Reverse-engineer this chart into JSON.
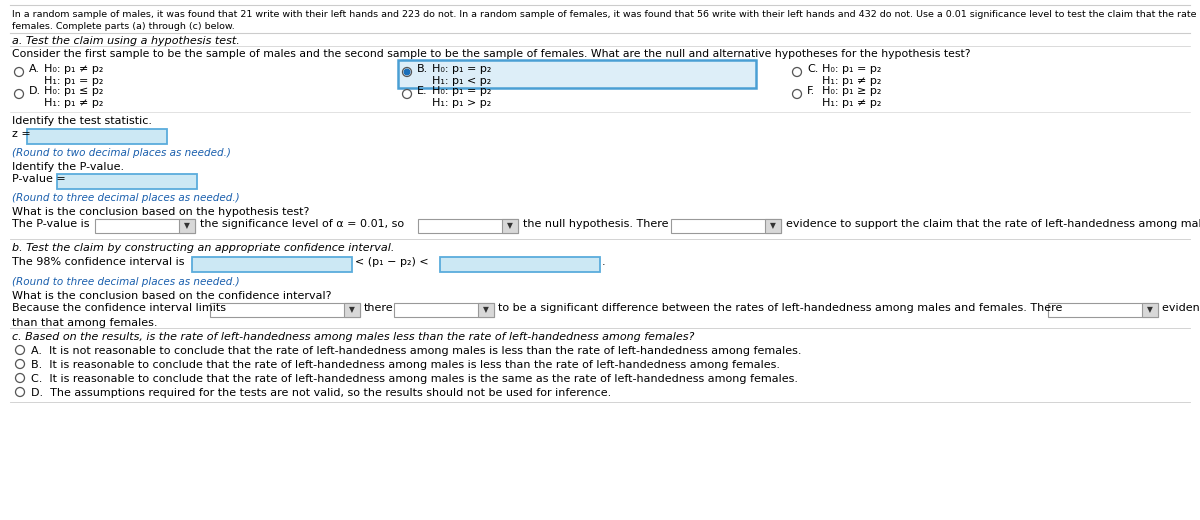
{
  "bg_color": "#ffffff",
  "header_line1": "In a random sample of males, it was found that 21 write with their left hands and 223 do not. In a random sample of females, it was found that 56 write with their left hands and 432 do not. Use a 0.01 significance level to test the claim that the rate of left-handedness among males is less than that among",
  "header_line2": "females. Complete parts (a) through (c) below.",
  "part_a_label": "a. Test the claim using a hypothesis test.",
  "consider_text": "Consider the first sample to be the sample of males and the second sample to be the sample of females. What are the null and alternative hypotheses for the hypothesis test?",
  "options": [
    {
      "label": "A.",
      "h0": "H₀: p₁ ≠ p₂",
      "h1": "H₁: p₁ = p₂",
      "selected": false
    },
    {
      "label": "B.",
      "h0": "H₀: p₁ = p₂",
      "h1": "H₁: p₁ < p₂",
      "selected": true
    },
    {
      "label": "C.",
      "h0": "H₀: p₁ = p₂",
      "h1": "H₁: p₁ ≠ p₂",
      "selected": false
    },
    {
      "label": "D.",
      "h0": "H₀: p₁ ≤ p₂",
      "h1": "H₁: p₁ ≠ p₂",
      "selected": false
    },
    {
      "label": "E.",
      "h0": "H₀: p₁ = p₂",
      "h1": "H₁: p₁ > p₂",
      "selected": false
    },
    {
      "label": "F.",
      "h0": "H₀: p₁ ≥ p₂",
      "h1": "H₁: p₁ ≠ p₂",
      "selected": false
    }
  ],
  "test_stat_label": "Identify the test statistic.",
  "z_label": "z =",
  "round_z": "(Round to two decimal places as needed.)",
  "pvalue_label": "Identify the P-value.",
  "pvalue_field": "P-value =",
  "round_pvalue": "(Round to three decimal places as needed.)",
  "conclusion_hyp_label": "What is the conclusion based on the hypothesis test?",
  "part_b_label": "b. Test the claim by constructing an appropriate confidence interval.",
  "ci_label": "The 98% confidence interval is",
  "round_ci": "(Round to three decimal places as needed.)",
  "conclusion_ci_label": "What is the conclusion based on the confidence interval?",
  "part_c_label": "c. Based on the results, is the rate of left-handedness among males less than the rate of left-handedness among females?",
  "part_c_options": [
    "It is not reasonable to conclude that the rate of left-handedness among males is less than the rate of left-handedness among females.",
    "It is reasonable to conclude that the rate of left-handedness among males is less than the rate of left-handedness among females.",
    "It is reasonable to conclude that the rate of left-handedness among males is the same as the rate of left-handedness among females.",
    "The assumptions required for the tests are not valid, so the results should not be used for inference."
  ],
  "input_box_color": "#cce8f4",
  "input_border_color": "#5aacdc",
  "selected_box_color": "#ddeef8",
  "selected_border_color": "#4a9fd4",
  "text_color": "#000000",
  "link_color": "#1a5fad",
  "font_size": 8.5,
  "small_font_size": 7.8
}
